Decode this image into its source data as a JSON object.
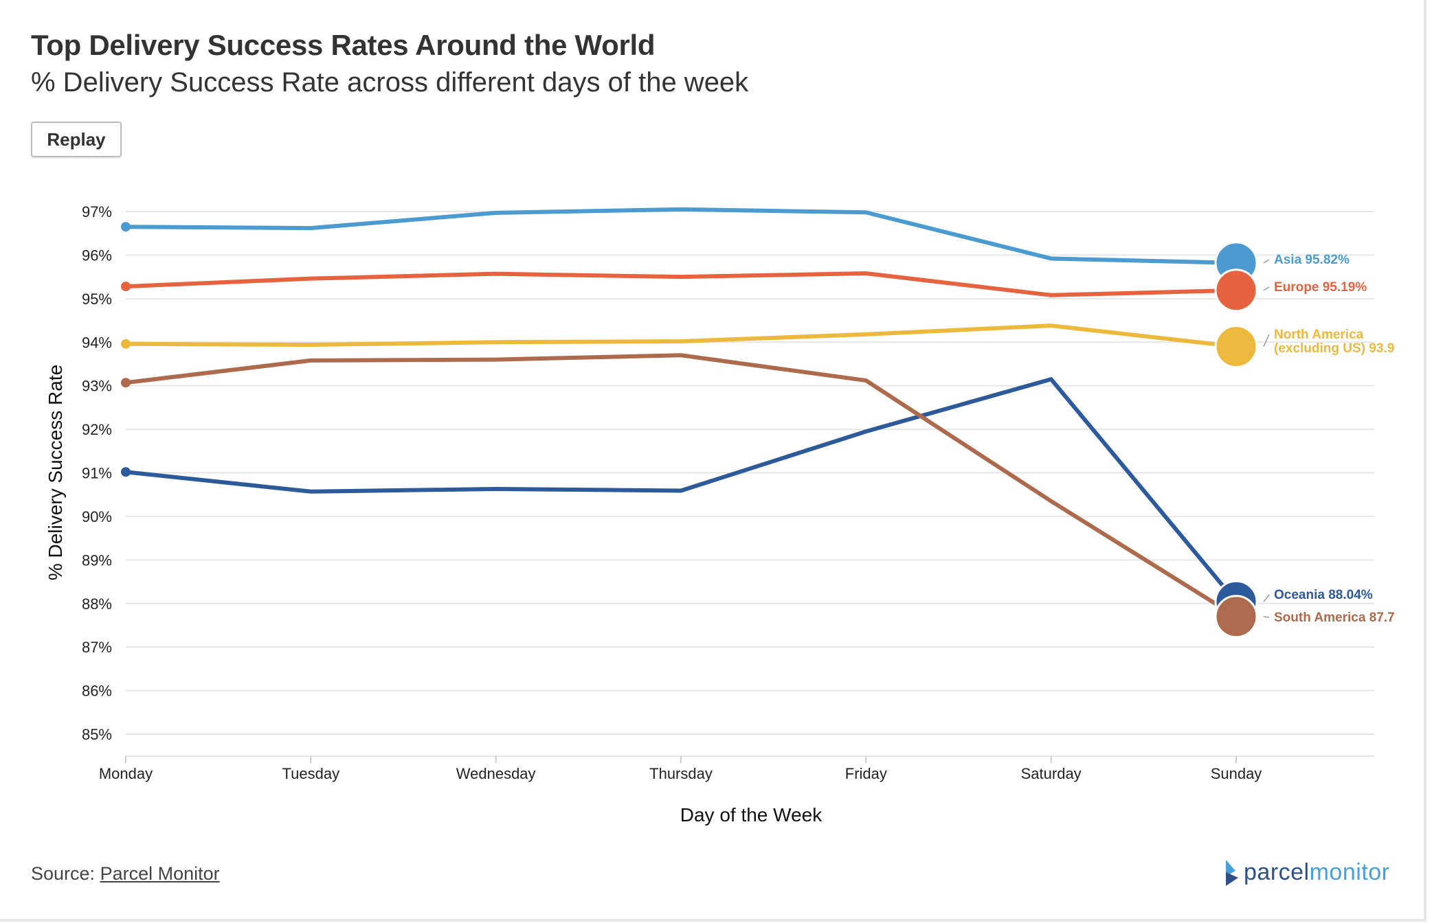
{
  "header": {
    "title": "Top Delivery Success Rates Around the World",
    "subtitle": "% Delivery Success Rate across different days of the week"
  },
  "controls": {
    "replay_label": "Replay"
  },
  "footer": {
    "source_prefix": "Source:",
    "source_link": "Parcel Monitor",
    "logo_part1": "parcel",
    "logo_part2": "monitor"
  },
  "colors": {
    "asia": "#4b9bd1",
    "europe": "#e7633f",
    "north_america": "#edb93c",
    "oceania": "#2d5a9a",
    "south_america": "#ad6a4c",
    "grid": "#e6e6e6",
    "logo_dark": "#2e4f87",
    "logo_light": "#4a9fd8"
  },
  "chart_data": {
    "type": "line",
    "title": "Top Delivery Success Rates Around the World",
    "subtitle": "% Delivery Success Rate across different days of the week",
    "xlabel": "Day of the Week",
    "ylabel": "% Delivery Success Rate",
    "categories": [
      "Monday",
      "Tuesday",
      "Wednesday",
      "Thursday",
      "Friday",
      "Saturday",
      "Sunday"
    ],
    "ylim": [
      85,
      97
    ],
    "yticks": [
      85,
      86,
      87,
      88,
      89,
      90,
      91,
      92,
      93,
      94,
      95,
      96,
      97
    ],
    "ytick_labels": [
      "85%",
      "86%",
      "87%",
      "88%",
      "89%",
      "90%",
      "91%",
      "92%",
      "93%",
      "94%",
      "95%",
      "96%",
      "97%"
    ],
    "grid": true,
    "series": [
      {
        "key": "asia",
        "name": "Asia",
        "values": [
          96.65,
          96.62,
          96.97,
          97.05,
          96.98,
          95.92,
          95.82
        ],
        "end_label": [
          "Asia 95.82%"
        ]
      },
      {
        "key": "europe",
        "name": "Europe",
        "values": [
          95.28,
          95.46,
          95.57,
          95.5,
          95.58,
          95.08,
          95.19
        ],
        "end_label": [
          "Europe 95.19%"
        ]
      },
      {
        "key": "north_america",
        "name": "North America (excluding US)",
        "values": [
          93.96,
          93.94,
          94.0,
          94.02,
          94.18,
          94.38,
          93.9
        ],
        "end_label": [
          "North America",
          "(excluding US) 93.9"
        ]
      },
      {
        "key": "oceania",
        "name": "Oceania",
        "values": [
          91.02,
          90.57,
          90.63,
          90.59,
          91.95,
          93.15,
          88.04
        ],
        "end_label": [
          "Oceania 88.04%"
        ]
      },
      {
        "key": "south_america",
        "name": "South America",
        "values": [
          93.07,
          93.58,
          93.6,
          93.7,
          93.12,
          90.35,
          87.7
        ],
        "end_label": [
          "South America 87.7"
        ]
      }
    ]
  }
}
